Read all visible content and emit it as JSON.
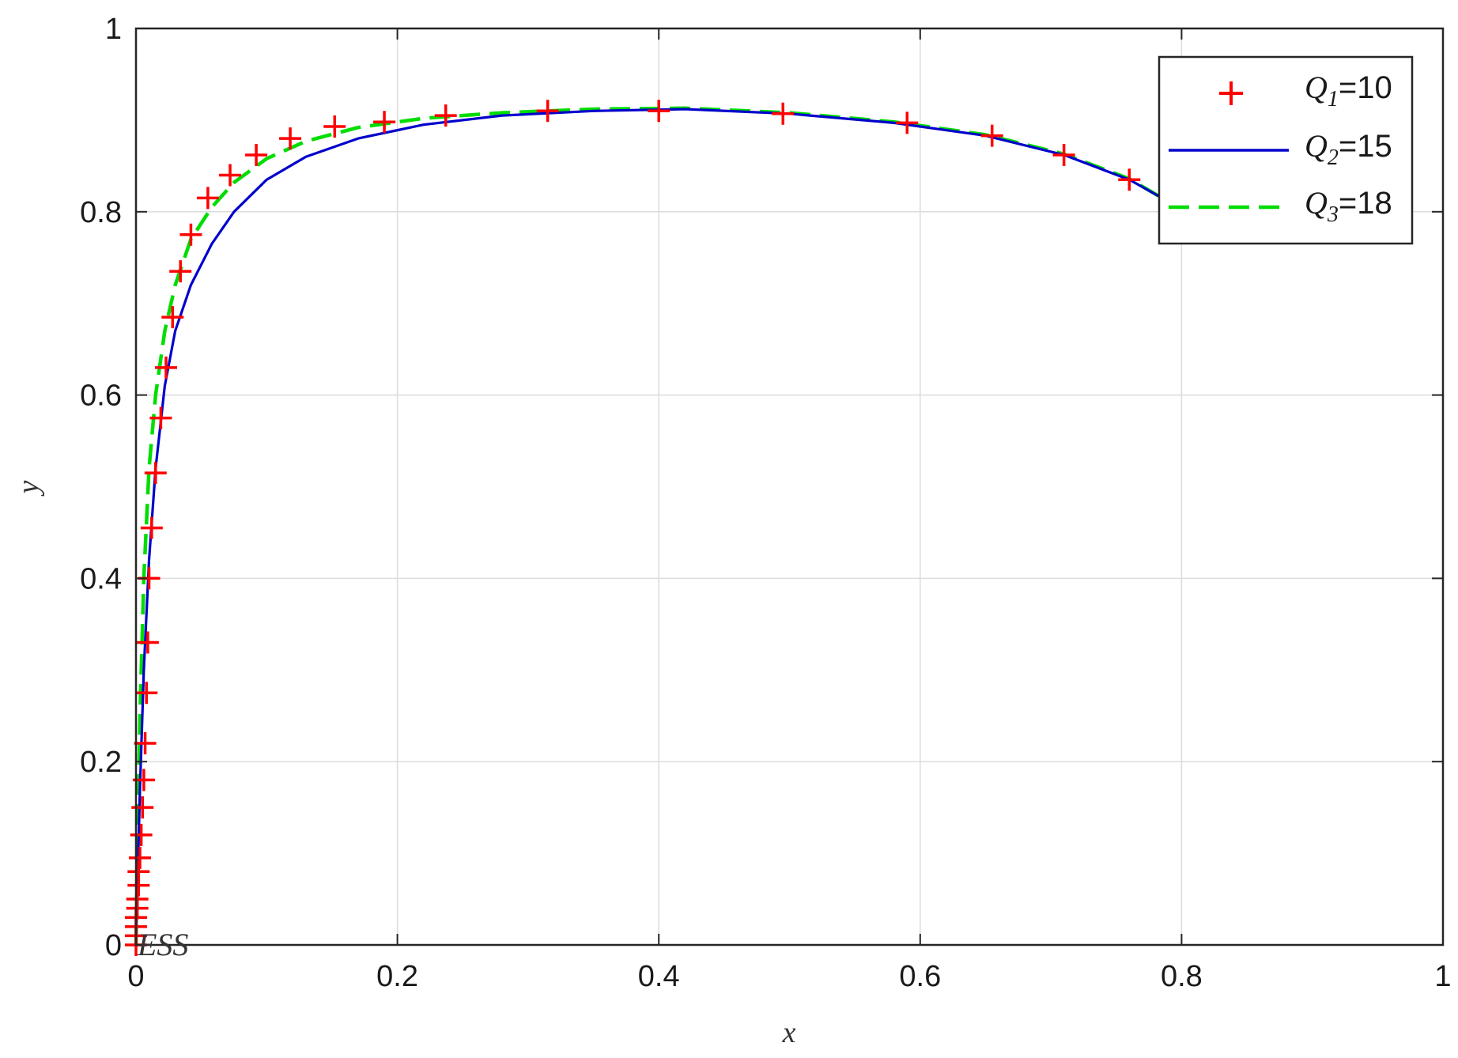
{
  "chart_data": {
    "type": "line",
    "xlabel": "x",
    "ylabel": "y",
    "xlim": [
      0,
      1
    ],
    "ylim": [
      0,
      1
    ],
    "xticks": [
      "0",
      "0.2",
      "0.4",
      "0.6",
      "0.8",
      "1"
    ],
    "yticks": [
      "0",
      "0.2",
      "0.4",
      "0.6",
      "0.8",
      "1"
    ],
    "grid": true,
    "legend_position": "top-right",
    "annotation": {
      "text": "ESS",
      "x": 0.0,
      "y": 0.0
    },
    "series": [
      {
        "name": "Q1=10",
        "legend_main": "Q",
        "legend_sub": "1",
        "legend_value": "=10",
        "style": "markers-plus",
        "color": "#ff0000",
        "x": [
          0.0,
          0.0,
          0.0,
          0.0,
          0.001,
          0.001,
          0.002,
          0.002,
          0.003,
          0.004,
          0.005,
          0.006,
          0.007,
          0.008,
          0.009,
          0.01,
          0.012,
          0.015,
          0.019,
          0.023,
          0.028,
          0.034,
          0.042,
          0.055,
          0.072,
          0.092,
          0.118,
          0.152,
          0.19,
          0.237,
          0.315,
          0.4,
          0.495,
          0.59,
          0.655,
          0.71,
          0.76
        ],
        "y": [
          0.0,
          0.01,
          0.02,
          0.03,
          0.04,
          0.05,
          0.065,
          0.08,
          0.095,
          0.12,
          0.15,
          0.18,
          0.22,
          0.275,
          0.33,
          0.4,
          0.455,
          0.515,
          0.575,
          0.63,
          0.685,
          0.735,
          0.775,
          0.815,
          0.84,
          0.862,
          0.88,
          0.893,
          0.898,
          0.905,
          0.91,
          0.91,
          0.907,
          0.897,
          0.883,
          0.862,
          0.835
        ]
      },
      {
        "name": "Q2=15",
        "legend_main": "Q",
        "legend_sub": "2",
        "legend_value": "=15",
        "style": "solid",
        "color": "#0000cc",
        "x": [
          0.0,
          0.001,
          0.003,
          0.006,
          0.01,
          0.015,
          0.022,
          0.03,
          0.042,
          0.058,
          0.075,
          0.1,
          0.13,
          0.17,
          0.22,
          0.28,
          0.35,
          0.42,
          0.5,
          0.58,
          0.65,
          0.71,
          0.76,
          0.785
        ],
        "y": [
          0.0,
          0.06,
          0.17,
          0.3,
          0.42,
          0.52,
          0.61,
          0.67,
          0.72,
          0.765,
          0.8,
          0.835,
          0.86,
          0.88,
          0.895,
          0.905,
          0.91,
          0.912,
          0.907,
          0.897,
          0.883,
          0.862,
          0.835,
          0.815
        ]
      },
      {
        "name": "Q3=18",
        "legend_main": "Q",
        "legend_sub": "3",
        "legend_value": "=18",
        "style": "dashed",
        "color": "#00dd00",
        "x": [
          0.0,
          0.001,
          0.003,
          0.006,
          0.01,
          0.015,
          0.022,
          0.03,
          0.042,
          0.058,
          0.075,
          0.1,
          0.13,
          0.17,
          0.22,
          0.28,
          0.35,
          0.42,
          0.5,
          0.58,
          0.65,
          0.71,
          0.76,
          0.785
        ],
        "y": [
          0.0,
          0.1,
          0.25,
          0.4,
          0.52,
          0.6,
          0.67,
          0.72,
          0.77,
          0.805,
          0.832,
          0.858,
          0.877,
          0.892,
          0.902,
          0.908,
          0.912,
          0.913,
          0.908,
          0.898,
          0.884,
          0.863,
          0.836,
          0.815
        ]
      }
    ]
  }
}
